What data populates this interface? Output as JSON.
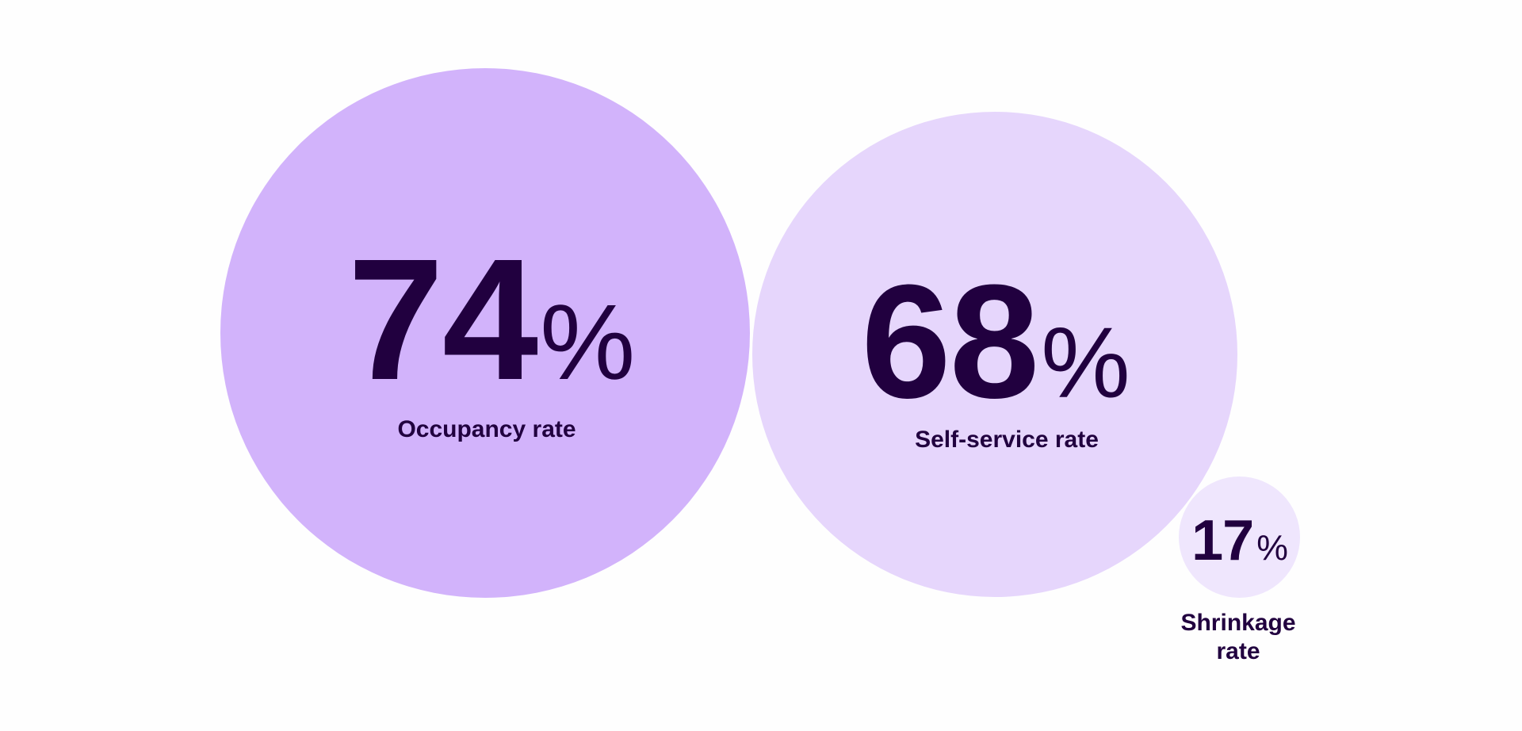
{
  "chart_data": {
    "type": "bubble",
    "unit": "%",
    "items": [
      {
        "label": "Occupancy rate",
        "value": 74,
        "display": "74",
        "color": "#d2b3fb"
      },
      {
        "label": "Self-service rate",
        "value": 68,
        "display": "68",
        "color": "#e6d6fc"
      },
      {
        "label": "Shrinkage rate",
        "value": 17,
        "display": "17",
        "label_lines": [
          "Shrinkage",
          "rate"
        ],
        "color": "#efe6fd"
      }
    ],
    "text_color": "#21003f"
  }
}
